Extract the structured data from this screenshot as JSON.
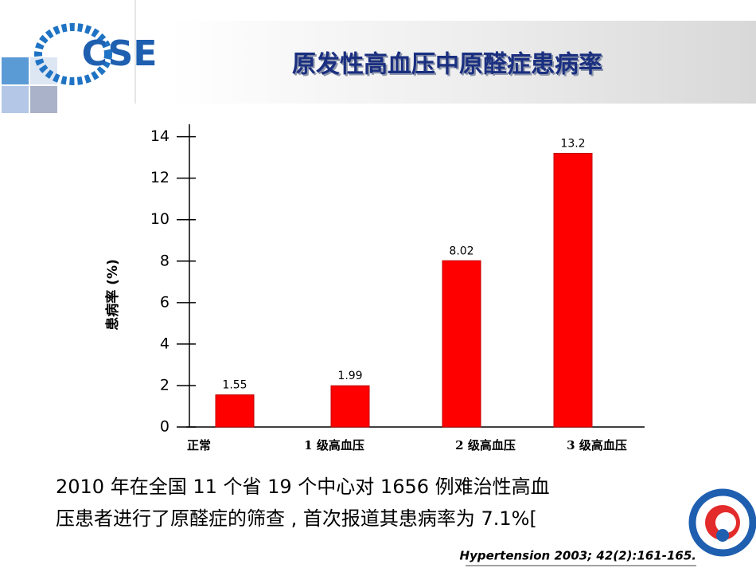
{
  "logo": "CSE",
  "body_text": [
    "2010 年在全国 11 个省 19 个中心对 1656 例难治性高血",
    "压患者进行了原醛症的筛查 , 首次报道其患病率为   7.1%["
  ],
  "reference": "Hypertension 2003; 42(2):161-165.",
  "chart_data": {
    "type": "bar",
    "title": "原发性高血压中原醛症患病率",
    "ylabel": "患病率 (%)",
    "categories": [
      "正常",
      "1 级高血压",
      "2 级高血压",
      "3 级高血压"
    ],
    "values": [
      1.55,
      1.99,
      8.02,
      13.2
    ],
    "color": "#ff0000",
    "ylim": [
      0,
      14.6
    ],
    "yticks": [
      0,
      2,
      4,
      6,
      8,
      10,
      12,
      14
    ]
  }
}
